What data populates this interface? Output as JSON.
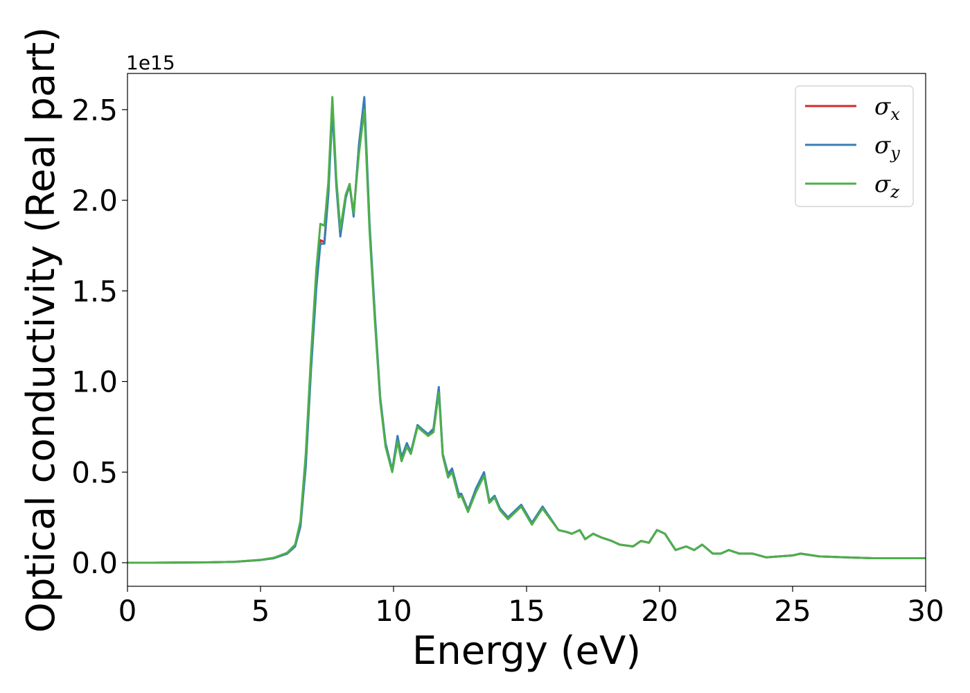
{
  "chart_data": {
    "type": "line",
    "xlabel": "Energy (eV)",
    "ylabel": "Optical conductivity (Real part)",
    "y_offset_label": "1e15",
    "xlim": [
      0,
      30
    ],
    "ylim": [
      -0.13,
      2.7
    ],
    "xticks": [
      0,
      5,
      10,
      15,
      20,
      25,
      30
    ],
    "xtick_labels": [
      "0",
      "5",
      "10",
      "15",
      "20",
      "25",
      "30"
    ],
    "yticks": [
      0.0,
      0.5,
      1.0,
      1.5,
      2.0,
      2.5
    ],
    "ytick_labels": [
      "0.0",
      "0.5",
      "1.0",
      "1.5",
      "2.0",
      "2.5"
    ],
    "grid": false,
    "legend_position": "top-right",
    "x": [
      0,
      1,
      2,
      3,
      4,
      5,
      5.5,
      6,
      6.3,
      6.5,
      6.7,
      6.9,
      7.1,
      7.25,
      7.4,
      7.55,
      7.7,
      7.85,
      8.0,
      8.2,
      8.35,
      8.5,
      8.7,
      8.9,
      9.1,
      9.3,
      9.5,
      9.7,
      9.95,
      10.15,
      10.3,
      10.5,
      10.65,
      10.9,
      11.05,
      11.3,
      11.5,
      11.7,
      11.85,
      12.05,
      12.2,
      12.45,
      12.55,
      12.8,
      13.1,
      13.4,
      13.6,
      13.8,
      14.0,
      14.3,
      14.8,
      15.2,
      15.6,
      16.2,
      16.5,
      16.7,
      17.0,
      17.2,
      17.5,
      17.8,
      18.2,
      18.5,
      19.0,
      19.3,
      19.6,
      19.9,
      20.2,
      20.6,
      21.0,
      21.3,
      21.6,
      22.0,
      22.3,
      22.6,
      23.0,
      23.5,
      24.0,
      25.0,
      25.3,
      26.0,
      27.0,
      28.0,
      29.0,
      30.0
    ],
    "series": [
      {
        "name": "σx",
        "color": "#d62728",
        "values": [
          0,
          0,
          0.001,
          0.002,
          0.005,
          0.015,
          0.025,
          0.05,
          0.09,
          0.2,
          0.55,
          1.1,
          1.55,
          1.78,
          1.77,
          2.05,
          2.52,
          2.1,
          1.82,
          2.02,
          2.08,
          1.92,
          2.3,
          2.55,
          1.85,
          1.35,
          0.9,
          0.65,
          0.51,
          0.69,
          0.58,
          0.65,
          0.61,
          0.75,
          0.74,
          0.7,
          0.73,
          0.96,
          0.6,
          0.48,
          0.51,
          0.37,
          0.38,
          0.29,
          0.4,
          0.49,
          0.34,
          0.36,
          0.3,
          0.25,
          0.31,
          0.22,
          0.3,
          0.18,
          0.17,
          0.16,
          0.18,
          0.13,
          0.16,
          0.14,
          0.12,
          0.1,
          0.09,
          0.12,
          0.11,
          0.18,
          0.16,
          0.07,
          0.09,
          0.07,
          0.1,
          0.05,
          0.05,
          0.07,
          0.05,
          0.05,
          0.03,
          0.04,
          0.05,
          0.035,
          0.03,
          0.025,
          0.025,
          0.025
        ]
      },
      {
        "name": "σy",
        "color": "#377eb8",
        "values": [
          0,
          0,
          0.001,
          0.002,
          0.005,
          0.015,
          0.025,
          0.05,
          0.09,
          0.2,
          0.53,
          1.07,
          1.52,
          1.76,
          1.76,
          2.03,
          2.5,
          2.08,
          1.8,
          2.01,
          2.09,
          1.91,
          2.31,
          2.57,
          1.87,
          1.37,
          0.91,
          0.66,
          0.51,
          0.7,
          0.58,
          0.66,
          0.61,
          0.76,
          0.74,
          0.71,
          0.74,
          0.97,
          0.6,
          0.49,
          0.52,
          0.38,
          0.38,
          0.29,
          0.41,
          0.5,
          0.34,
          0.37,
          0.3,
          0.25,
          0.32,
          0.22,
          0.31,
          0.18,
          0.17,
          0.16,
          0.18,
          0.13,
          0.16,
          0.14,
          0.12,
          0.1,
          0.09,
          0.12,
          0.11,
          0.18,
          0.16,
          0.07,
          0.09,
          0.07,
          0.1,
          0.05,
          0.05,
          0.07,
          0.05,
          0.05,
          0.03,
          0.04,
          0.05,
          0.035,
          0.03,
          0.025,
          0.025,
          0.025
        ]
      },
      {
        "name": "σz",
        "color": "#4daf4a",
        "values": [
          0,
          0,
          0.001,
          0.002,
          0.005,
          0.016,
          0.027,
          0.055,
          0.1,
          0.23,
          0.6,
          1.15,
          1.62,
          1.87,
          1.86,
          2.1,
          2.57,
          2.12,
          1.84,
          2.03,
          2.09,
          1.93,
          2.26,
          2.5,
          1.83,
          1.33,
          0.89,
          0.64,
          0.5,
          0.67,
          0.56,
          0.64,
          0.6,
          0.75,
          0.73,
          0.7,
          0.72,
          0.94,
          0.59,
          0.47,
          0.5,
          0.36,
          0.37,
          0.28,
          0.39,
          0.48,
          0.33,
          0.36,
          0.29,
          0.24,
          0.31,
          0.21,
          0.3,
          0.18,
          0.17,
          0.16,
          0.18,
          0.13,
          0.16,
          0.14,
          0.12,
          0.1,
          0.09,
          0.12,
          0.11,
          0.18,
          0.16,
          0.07,
          0.09,
          0.07,
          0.1,
          0.05,
          0.05,
          0.07,
          0.05,
          0.05,
          0.03,
          0.04,
          0.05,
          0.035,
          0.03,
          0.025,
          0.025,
          0.025
        ]
      }
    ],
    "legend": [
      {
        "symbol": "σ",
        "subscript": "x",
        "color": "#d62728"
      },
      {
        "symbol": "σ",
        "subscript": "y",
        "color": "#377eb8"
      },
      {
        "symbol": "σ",
        "subscript": "z",
        "color": "#4daf4a"
      }
    ]
  }
}
